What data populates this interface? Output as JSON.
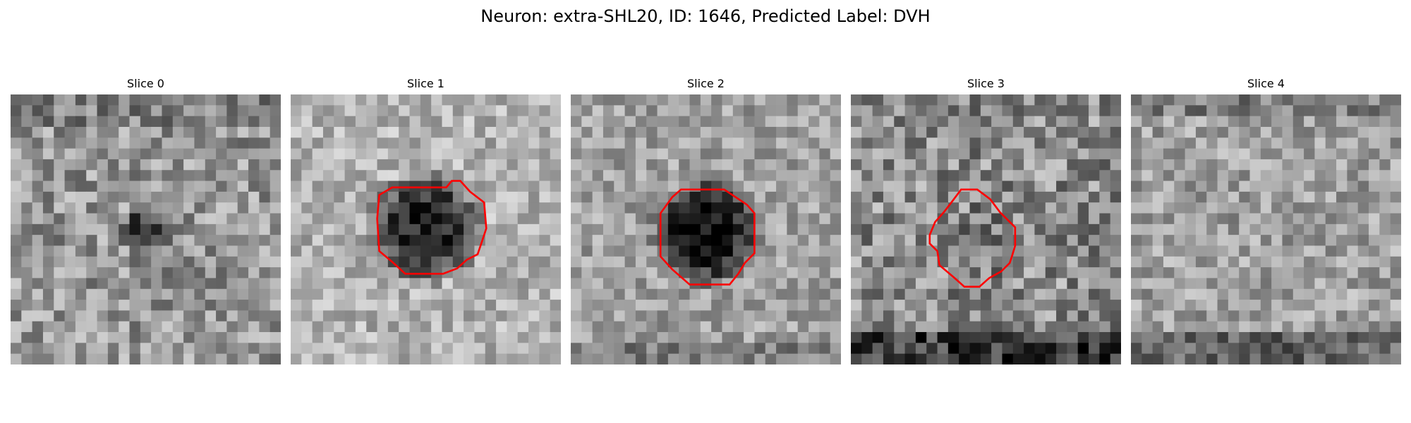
{
  "figure": {
    "title": "Neuron: extra-SHL20, ID: 1646, Predicted Label: DVH"
  },
  "slices": [
    {
      "label": "Slice 0",
      "has_contour": false
    },
    {
      "label": "Slice 1",
      "has_contour": true
    },
    {
      "label": "Slice 2",
      "has_contour": true
    },
    {
      "label": "Slice 3",
      "has_contour": true
    },
    {
      "label": "Slice 4",
      "has_contour": false
    }
  ],
  "colors": {
    "contour": "#ff0000",
    "background": "#ffffff"
  }
}
